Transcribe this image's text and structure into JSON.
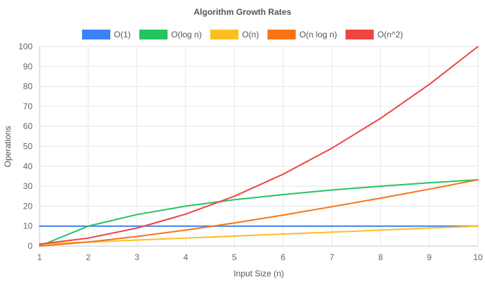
{
  "chart_data": {
    "type": "line",
    "title": "Algorithm Growth Rates",
    "xlabel": "Input Size (n)",
    "ylabel": "Operations",
    "x": [
      1,
      2,
      3,
      4,
      5,
      6,
      7,
      8,
      9,
      10
    ],
    "xlim": [
      1,
      10
    ],
    "ylim": [
      0,
      100
    ],
    "yticks": [
      0,
      10,
      20,
      30,
      40,
      50,
      60,
      70,
      80,
      90,
      100
    ],
    "grid": true,
    "legend_position": "top",
    "series": [
      {
        "name": "O(1)",
        "color": "#3b82f6",
        "values": [
          10,
          10,
          10,
          10,
          10,
          10,
          10,
          10,
          10,
          10
        ]
      },
      {
        "name": "O(log n)",
        "color": "#22c55e",
        "values": [
          0,
          10,
          15.8,
          20,
          23.2,
          25.8,
          28.1,
          30,
          31.7,
          33.2
        ]
      },
      {
        "name": "O(n)",
        "color": "#fbbf24",
        "values": [
          1,
          2,
          3,
          4,
          5,
          6,
          7,
          8,
          9,
          10
        ]
      },
      {
        "name": "O(n log n)",
        "color": "#f97316",
        "values": [
          0,
          2,
          4.8,
          8,
          11.6,
          15.5,
          19.7,
          24,
          28.5,
          33.2
        ]
      },
      {
        "name": "O(n^2)",
        "color": "#ef4444",
        "values": [
          1,
          4,
          9,
          16,
          25,
          36,
          49,
          64,
          81,
          100
        ]
      }
    ]
  }
}
